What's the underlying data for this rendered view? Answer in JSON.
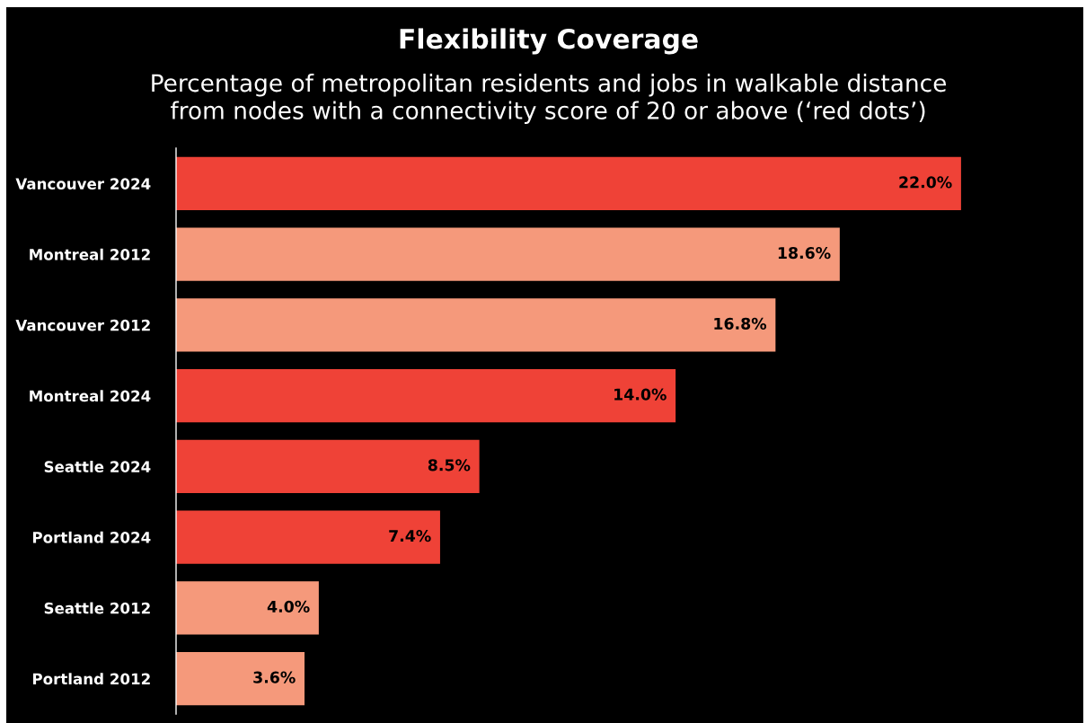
{
  "chart_data": {
    "type": "bar",
    "orientation": "horizontal",
    "title": "Flexibility Coverage",
    "subtitle": "Percentage of metropolitan residents and jobs in walkable distance\nfrom nodes with a connectivity score of 20 or above (‘red dots’)",
    "categories": [
      "Vancouver 2024",
      "Montreal 2012",
      "Vancouver 2012",
      "Montreal 2024",
      "Seattle 2024",
      "Portland 2024",
      "Seattle 2012",
      "Portland 2012"
    ],
    "values": [
      22.0,
      18.6,
      16.8,
      14.0,
      8.5,
      7.4,
      4.0,
      3.6
    ],
    "colors": [
      "#ef4237",
      "#f5997b",
      "#f5997b",
      "#ef4237",
      "#ef4237",
      "#ef4237",
      "#f5997b",
      "#f5997b"
    ],
    "value_labels": [
      "22.0%",
      "18.6%",
      "16.8%",
      "14.0%",
      "8.5%",
      "7.4%",
      "4.0%",
      "3.6%"
    ],
    "xlim": [
      0,
      25.3
    ],
    "tick_labels": "y",
    "grid": false,
    "legend": false
  }
}
